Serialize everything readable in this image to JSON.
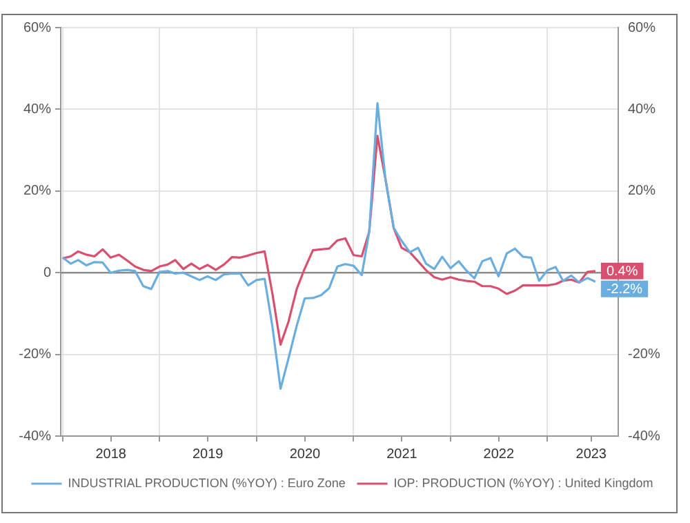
{
  "chart_data": {
    "type": "line",
    "x": [
      "2018-01",
      "2018-02",
      "2018-03",
      "2018-04",
      "2018-05",
      "2018-06",
      "2018-07",
      "2018-08",
      "2018-09",
      "2018-10",
      "2018-11",
      "2018-12",
      "2019-01",
      "2019-02",
      "2019-03",
      "2019-04",
      "2019-05",
      "2019-06",
      "2019-07",
      "2019-08",
      "2019-09",
      "2019-10",
      "2019-11",
      "2019-12",
      "2020-01",
      "2020-02",
      "2020-03",
      "2020-04",
      "2020-05",
      "2020-06",
      "2020-07",
      "2020-08",
      "2020-09",
      "2020-10",
      "2020-11",
      "2020-12",
      "2021-01",
      "2021-02",
      "2021-03",
      "2021-04",
      "2021-05",
      "2021-06",
      "2021-07",
      "2021-08",
      "2021-09",
      "2021-10",
      "2021-11",
      "2021-12",
      "2022-01",
      "2022-02",
      "2022-03",
      "2022-04",
      "2022-05",
      "2022-06",
      "2022-07",
      "2022-08",
      "2022-09",
      "2022-10",
      "2022-11",
      "2022-12",
      "2023-01",
      "2023-02",
      "2023-03",
      "2023-04",
      "2023-05",
      "2023-06",
      "2023-07"
    ],
    "series": [
      {
        "name": "INDUSTRIAL PRODUCTION (%YOY) : Euro Zone",
        "color": "#6aaee0",
        "values": [
          3.7,
          2.2,
          3.1,
          1.8,
          2.6,
          2.5,
          0.0,
          0.5,
          0.7,
          0.4,
          -3.3,
          -4.0,
          0.2,
          0.4,
          -0.2,
          0.0,
          -0.9,
          -1.8,
          -0.9,
          -1.8,
          -0.4,
          -0.2,
          -0.2,
          -3.1,
          -1.8,
          -1.5,
          -13,
          -28.4,
          -21,
          -13,
          -6.3,
          -6.2,
          -5.5,
          -3.8,
          1.5,
          2.1,
          1.7,
          -0.6,
          10,
          41.5,
          23,
          11,
          7.8,
          5.0,
          6.1,
          2.2,
          0.9,
          3.9,
          1.1,
          2.8,
          0.6,
          -1.4,
          2.8,
          3.6,
          -0.9,
          4.7,
          5.9,
          3.9,
          3.7,
          -2.0,
          0.6,
          1.4,
          -2.0,
          -0.7,
          -2.4,
          -1.3,
          -2.2
        ],
        "value_labels": [
          null,
          null,
          null,
          null,
          null,
          null,
          null,
          null,
          null,
          null,
          null,
          null,
          null,
          null,
          null,
          null,
          null,
          null,
          null,
          null,
          null,
          null,
          null,
          null,
          null,
          null,
          null,
          null,
          null,
          null,
          null,
          null,
          null,
          null,
          null,
          null,
          null,
          null,
          null,
          null,
          null,
          null,
          null,
          null,
          null,
          null,
          null,
          null,
          null,
          null,
          null,
          null,
          null,
          null,
          null,
          null,
          null,
          null,
          null,
          null,
          null,
          null,
          null,
          null,
          null,
          null,
          "-2.2%"
        ]
      },
      {
        "name": "IOP: PRODUCTION (%YOY) : United Kingdom",
        "color": "#d9506f",
        "values": [
          3.5,
          4.0,
          5.2,
          4.4,
          4.0,
          5.7,
          3.7,
          4.4,
          3.0,
          1.5,
          0.7,
          0.4,
          1.5,
          2.0,
          3.1,
          0.9,
          2.2,
          0.9,
          1.9,
          0.7,
          2.0,
          3.8,
          3.7,
          4.2,
          4.8,
          5.2,
          -5,
          -17.6,
          -12,
          -4,
          1.0,
          5.5,
          5.7,
          5.9,
          7.9,
          8.4,
          4.3,
          4.0,
          10,
          33.5,
          23,
          11,
          6.1,
          5.0,
          2.8,
          0.6,
          -1.1,
          -1.7,
          -1.1,
          -1.7,
          -2.0,
          -2.2,
          -3.3,
          -3.3,
          -3.9,
          -5.2,
          -4.4,
          -3.1,
          -3.1,
          -3.1,
          -3.1,
          -2.8,
          -2.0,
          -1.7,
          -2.4,
          0.2,
          0.4
        ],
        "value_labels": [
          null,
          null,
          null,
          null,
          null,
          null,
          null,
          null,
          null,
          null,
          null,
          null,
          null,
          null,
          null,
          null,
          null,
          null,
          null,
          null,
          null,
          null,
          null,
          null,
          null,
          null,
          null,
          null,
          null,
          null,
          null,
          null,
          null,
          null,
          null,
          null,
          null,
          null,
          null,
          null,
          null,
          null,
          null,
          null,
          null,
          null,
          null,
          null,
          null,
          null,
          null,
          null,
          null,
          null,
          null,
          null,
          null,
          null,
          null,
          null,
          null,
          null,
          null,
          null,
          null,
          null,
          "0.4%"
        ]
      }
    ],
    "xlim": [
      "2017-12-25",
      "2023-09-25"
    ],
    "xticks": [
      {
        "value": "2018-01-01",
        "label": null
      },
      {
        "value": "2018-07-02",
        "label": "2018"
      },
      {
        "value": "2019-01-01",
        "label": null
      },
      {
        "value": "2019-07-02",
        "label": "2019"
      },
      {
        "value": "2020-01-01",
        "label": null
      },
      {
        "value": "2020-07-02",
        "label": "2020"
      },
      {
        "value": "2021-01-01",
        "label": null
      },
      {
        "value": "2021-07-02",
        "label": "2021"
      },
      {
        "value": "2022-01-01",
        "label": null
      },
      {
        "value": "2022-07-02",
        "label": "2022"
      },
      {
        "value": "2023-01-01",
        "label": null
      },
      {
        "value": "2023-06-15",
        "label": "2023"
      }
    ],
    "ylim": [
      -40,
      60
    ],
    "yticks": [
      {
        "value": -40,
        "label": "-40%"
      },
      {
        "value": -20,
        "label": "-20%"
      },
      {
        "value": 0,
        "label": "0"
      },
      {
        "value": 20,
        "label": "20%"
      },
      {
        "value": 40,
        "label": "40%"
      },
      {
        "value": 60,
        "label": "60%"
      }
    ],
    "y2lim": [
      -40,
      60
    ],
    "y2ticks": [
      {
        "value": -40,
        "label": "-40%"
      },
      {
        "value": -20,
        "label": "-20%"
      },
      {
        "value": 0,
        "label": null
      },
      {
        "value": 20,
        "label": "20%"
      },
      {
        "value": 40,
        "label": "40%"
      },
      {
        "value": 60,
        "label": "60%"
      }
    ],
    "ref_lines": [
      {
        "axis": "y",
        "value": 0,
        "color": "#8c8c8c"
      }
    ],
    "grid": true,
    "legend": "bottom",
    "line_style": "solid"
  }
}
